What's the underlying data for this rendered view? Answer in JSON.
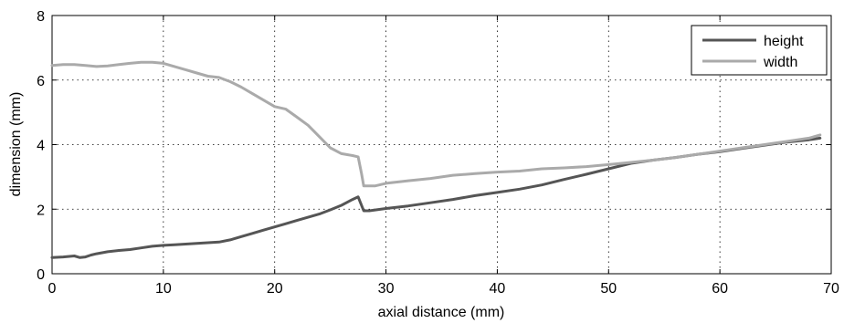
{
  "chart_data": {
    "type": "line",
    "title": "",
    "xlabel": "axial distance (mm)",
    "ylabel": "dimension (mm)",
    "xlim": [
      0,
      70
    ],
    "ylim": [
      0,
      8
    ],
    "x_ticks": [
      0,
      10,
      20,
      30,
      40,
      50,
      60,
      70
    ],
    "y_ticks": [
      0,
      2,
      4,
      6,
      8
    ],
    "grid": "dotted, on",
    "legend_placement": "top-right",
    "series": [
      {
        "name": "height",
        "color": "#555555",
        "x": [
          0,
          1,
          2,
          2.5,
          3,
          3.5,
          4,
          5,
          6,
          7,
          8,
          9,
          10,
          11,
          12,
          13,
          14,
          15,
          16,
          17,
          18,
          19,
          20,
          21,
          22,
          23,
          24,
          25,
          26,
          27,
          27.5,
          28,
          28.5,
          30,
          32,
          34,
          36,
          38,
          40,
          42,
          44,
          46,
          48,
          50,
          52,
          54,
          56,
          58,
          60,
          62,
          64,
          66,
          68,
          69
        ],
        "y": [
          0.5,
          0.52,
          0.55,
          0.5,
          0.52,
          0.58,
          0.62,
          0.68,
          0.72,
          0.75,
          0.8,
          0.85,
          0.88,
          0.9,
          0.92,
          0.94,
          0.96,
          0.98,
          1.05,
          1.15,
          1.25,
          1.35,
          1.45,
          1.55,
          1.65,
          1.75,
          1.85,
          1.98,
          2.12,
          2.3,
          2.38,
          1.95,
          1.95,
          2.02,
          2.1,
          2.2,
          2.3,
          2.42,
          2.52,
          2.62,
          2.75,
          2.92,
          3.08,
          3.25,
          3.42,
          3.52,
          3.6,
          3.7,
          3.78,
          3.88,
          3.98,
          4.08,
          4.15,
          4.2
        ]
      },
      {
        "name": "width",
        "color": "#aaaaaa",
        "x": [
          0,
          1,
          2,
          3,
          4,
          5,
          6,
          7,
          8,
          9,
          10,
          11,
          12,
          13,
          14,
          15,
          16,
          17,
          18,
          19,
          20,
          21,
          22,
          23,
          24,
          25,
          26,
          27,
          27.5,
          27.8,
          28,
          29,
          30,
          32,
          34,
          36,
          38,
          40,
          42,
          44,
          46,
          48,
          50,
          52,
          54,
          56,
          58,
          60,
          62,
          64,
          66,
          68,
          69
        ],
        "y": [
          6.45,
          6.48,
          6.48,
          6.45,
          6.42,
          6.44,
          6.48,
          6.52,
          6.55,
          6.55,
          6.52,
          6.42,
          6.32,
          6.22,
          6.12,
          6.08,
          5.95,
          5.78,
          5.58,
          5.38,
          5.18,
          5.1,
          4.85,
          4.6,
          4.25,
          3.9,
          3.72,
          3.66,
          3.62,
          3.1,
          2.72,
          2.72,
          2.8,
          2.88,
          2.95,
          3.05,
          3.1,
          3.15,
          3.18,
          3.25,
          3.28,
          3.32,
          3.38,
          3.45,
          3.52,
          3.6,
          3.7,
          3.8,
          3.9,
          4.0,
          4.1,
          4.2,
          4.3
        ]
      }
    ]
  }
}
